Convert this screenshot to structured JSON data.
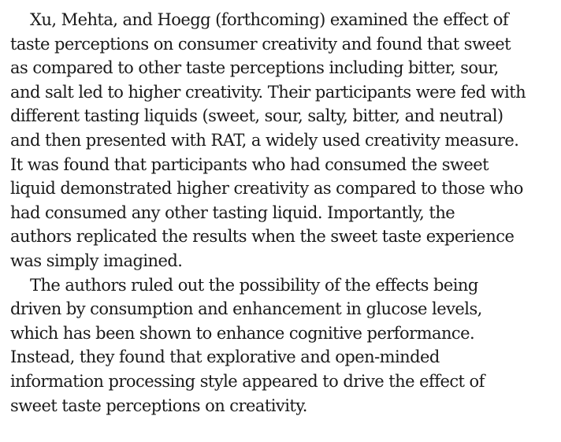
{
  "document": {
    "paragraphs": [
      {
        "lines": [
          "Xu, Mehta, and Hoegg (forthcoming) examined the effect of",
          "taste perceptions on consumer creativity and found that sweet",
          "as compared to other taste perceptions including bitter, sour,",
          "and salt led to higher creativity. Their participants were fed with",
          "different tasting liquids (sweet, sour, salty, bitter, and neutral)",
          "and then presented with RAT, a widely used creativity measure.",
          "It was found that participants who had consumed the sweet",
          "liquid demonstrated higher creativity as compared to those who",
          "had consumed any other tasting liquid. Importantly, the",
          "authors replicated the results when the sweet taste experience",
          "was simply imagined."
        ]
      },
      {
        "lines": [
          "The authors ruled out the possibility of the effects being",
          "driven by consumption and enhancement in glucose levels,",
          "which has been shown to enhance cognitive performance.",
          "Instead, they found that explorative and open-minded",
          "information processing style appeared to drive the effect of",
          "sweet taste perceptions on creativity."
        ]
      }
    ]
  }
}
